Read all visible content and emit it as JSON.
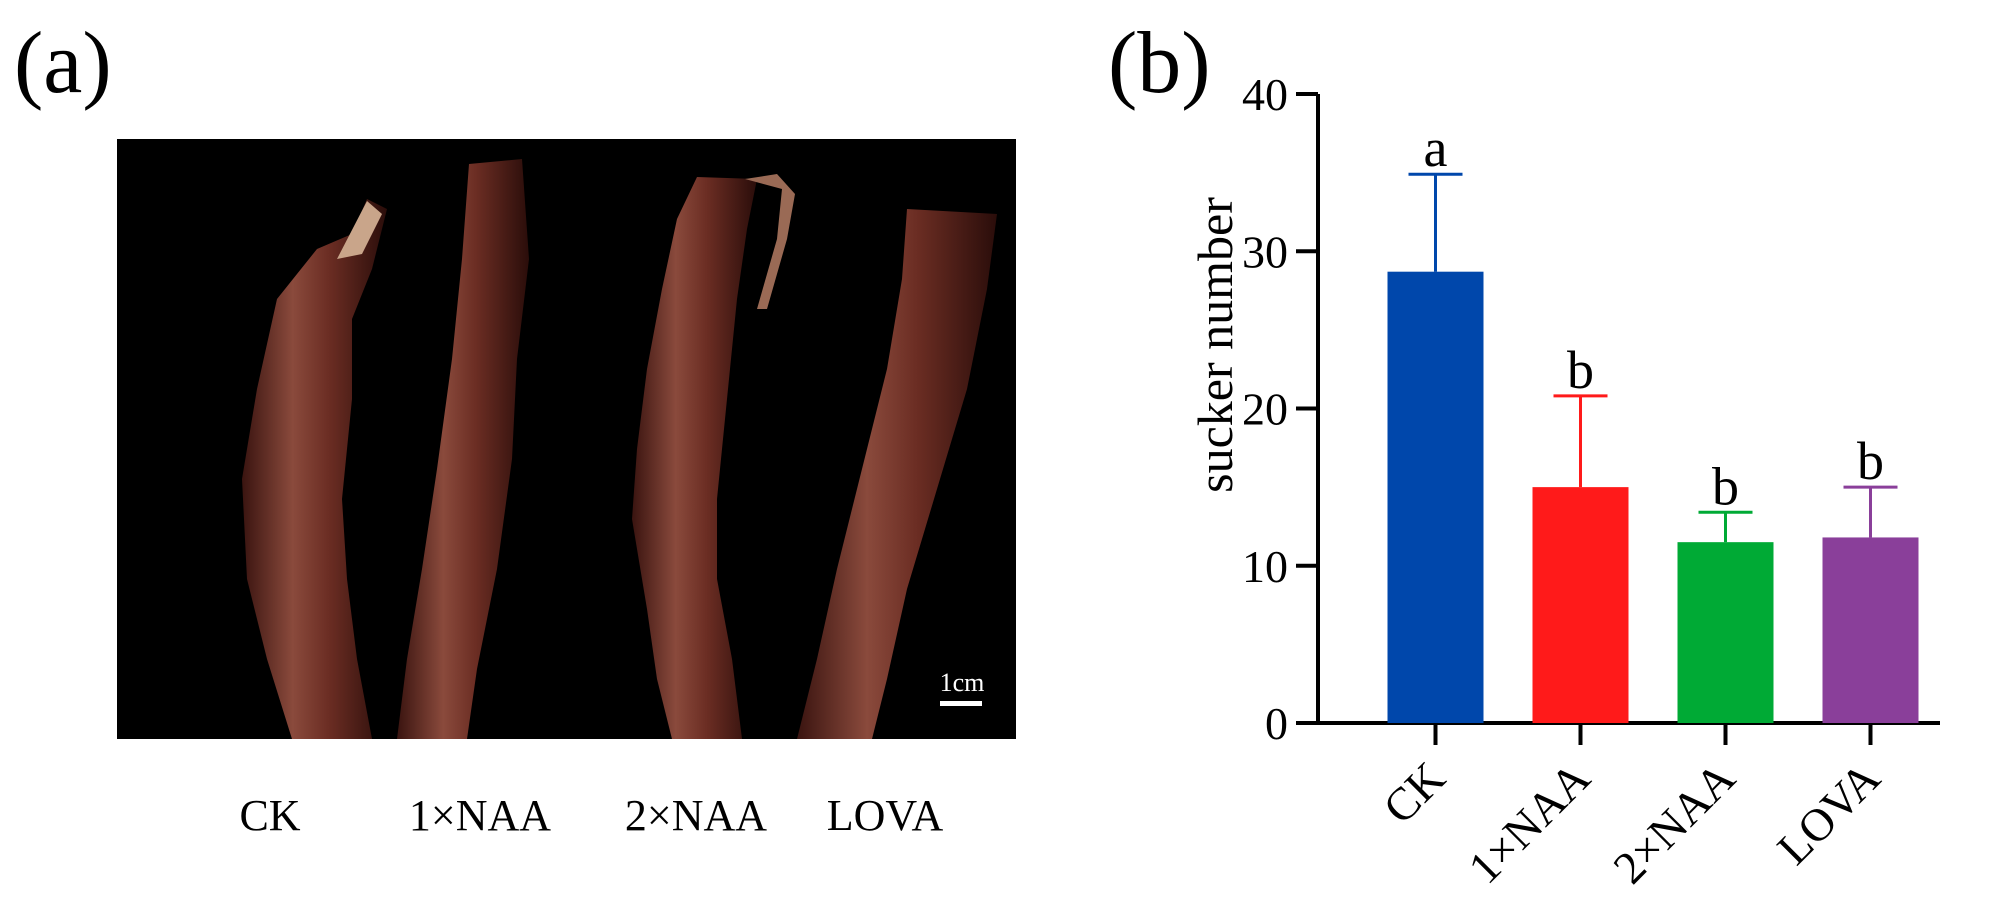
{
  "panel_a": {
    "label": "(a)",
    "scale_bar": "1cm",
    "captions": [
      "CK",
      "1×NAA",
      "2×NAA",
      "LOVA"
    ]
  },
  "panel_b": {
    "label": "(b)"
  },
  "colors": {
    "CK": "#0047ab",
    "1×NAA": "#ff1a1a",
    "2×NAA": "#00aa35",
    "LOVA": "#8a3f9a"
  },
  "chart_data": {
    "type": "bar",
    "categories": [
      "CK",
      "1×NAA",
      "2×NAA",
      "LOVA"
    ],
    "values": [
      28.7,
      15.0,
      11.5,
      11.8
    ],
    "error_upper": [
      6.2,
      5.8,
      1.9,
      3.2
    ],
    "significance": [
      "a",
      "b",
      "b",
      "b"
    ],
    "ylabel": "sucker number",
    "xlabel": "",
    "ylim": [
      0,
      40
    ],
    "yticks": [
      0,
      10,
      20,
      30,
      40
    ],
    "grid": false,
    "x_tick_rotation": "-45deg"
  }
}
